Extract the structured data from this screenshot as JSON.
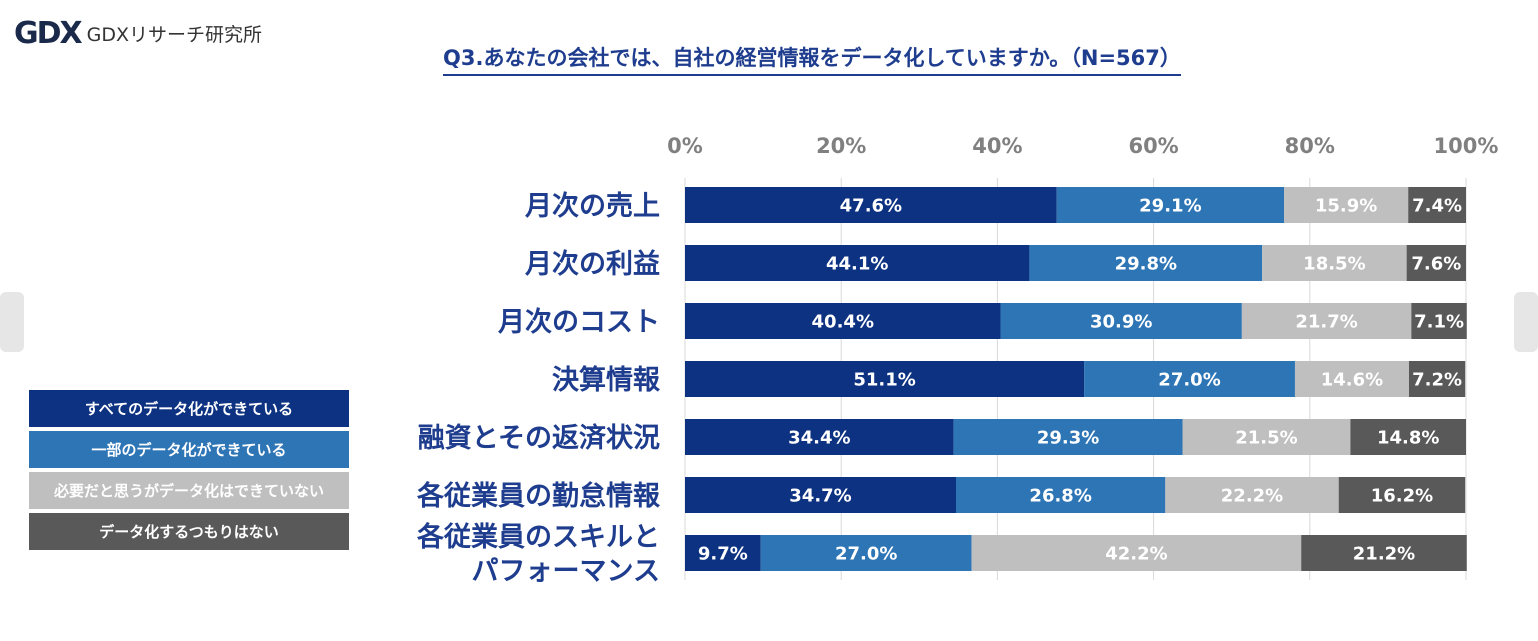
{
  "logo": {
    "mark": "GDX",
    "text": "GDXリサーチ研究所"
  },
  "chart_data": {
    "type": "bar",
    "orientation": "horizontal-stacked-100",
    "title": "Q3.あなたの会社では、自社の経営情報をデータ化していますか。（N=567）",
    "xlim": [
      0,
      100
    ],
    "ticks": [
      "0%",
      "20%",
      "40%",
      "60%",
      "80%",
      "100%"
    ],
    "grid": true,
    "legend_position": "left",
    "categories": [
      [
        "月次の売上"
      ],
      [
        "月次の利益"
      ],
      [
        "月次のコスト"
      ],
      [
        "決算情報"
      ],
      [
        "融資とその返済状況"
      ],
      [
        "各従業員の勤怠情報"
      ],
      [
        "各従業員のスキルと",
        "パフォーマンス"
      ]
    ],
    "series": [
      {
        "name": "すべてのデータ化ができている",
        "color": "#0d3282",
        "label_color": "#ffffff",
        "values": [
          47.6,
          44.1,
          40.4,
          51.1,
          34.4,
          34.7,
          9.7
        ]
      },
      {
        "name": "一部のデータ化ができている",
        "color": "#2e75b6",
        "label_color": "#ffffff",
        "values": [
          29.1,
          29.8,
          30.9,
          27.0,
          29.3,
          26.8,
          27.0
        ]
      },
      {
        "name": "必要だと思うがデータ化はできていない",
        "color": "#bfbfbf",
        "label_color": "#ffffff",
        "values": [
          15.9,
          18.5,
          21.7,
          14.6,
          21.5,
          22.2,
          42.2
        ]
      },
      {
        "name": "データ化するつもりはない",
        "color": "#595959",
        "label_color": "#ffffff",
        "values": [
          7.4,
          7.6,
          7.1,
          7.2,
          14.8,
          16.2,
          21.2
        ]
      }
    ]
  }
}
